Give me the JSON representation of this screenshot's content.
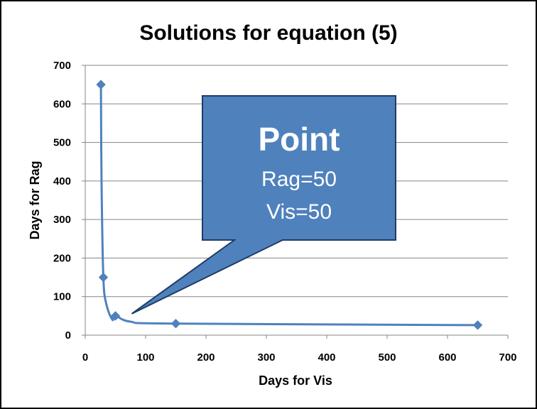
{
  "chart_data": {
    "type": "line",
    "title": "Solutions for equation (5)",
    "xlabel": "Days for Vis",
    "ylabel": "Days for Rag",
    "xlim": [
      0,
      700
    ],
    "ylim": [
      0,
      700
    ],
    "xticks": [
      0,
      100,
      200,
      300,
      400,
      500,
      600,
      700
    ],
    "yticks": [
      0,
      100,
      200,
      300,
      400,
      500,
      600,
      700
    ],
    "grid": "horizontal",
    "series": [
      {
        "color": "#4f81bd",
        "points": [
          {
            "x": 26,
            "y": 650
          },
          {
            "x": 30,
            "y": 150
          },
          {
            "x": 50,
            "y": 50
          },
          {
            "x": 150,
            "y": 30
          },
          {
            "x": 650,
            "y": 26
          }
        ],
        "curve_extra": [
          {
            "x": 27,
            "y": 400
          },
          {
            "x": 35,
            "y": 80
          },
          {
            "x": 45,
            "y": 40
          },
          {
            "x": 75,
            "y": 35
          }
        ]
      }
    ],
    "annotation": {
      "title": "Point",
      "line1": "Rag=50",
      "line2": "Vis=50",
      "target": {
        "x": 50,
        "y": 50
      },
      "fill": "#4f81bd",
      "border": "#1f3c66"
    }
  }
}
